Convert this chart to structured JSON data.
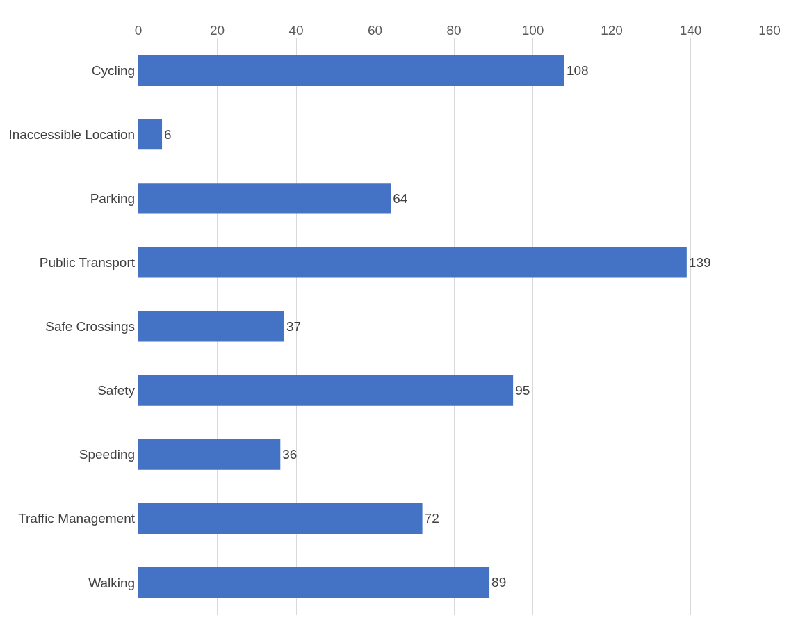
{
  "chart_data": {
    "type": "bar",
    "orientation": "horizontal",
    "categories": [
      "Cycling",
      "Inaccessible Location",
      "Parking",
      "Public Transport",
      "Safe Crossings",
      "Safety",
      "Speeding",
      "Traffic Management",
      "Walking"
    ],
    "values": [
      108,
      6,
      64,
      139,
      37,
      95,
      36,
      72,
      89
    ],
    "color": "#4472c4",
    "xlim": [
      0,
      160
    ],
    "xticks": [
      0,
      20,
      40,
      60,
      80,
      100,
      120,
      140,
      160
    ],
    "grid": "x",
    "data_labels": true
  }
}
